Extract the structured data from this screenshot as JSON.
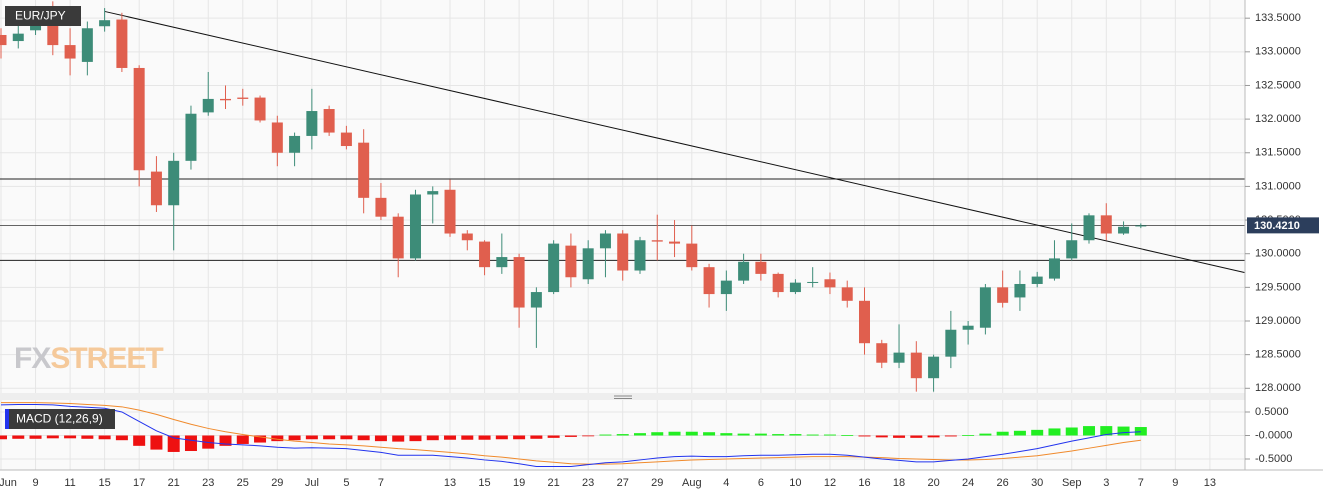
{
  "chart_data": {
    "type": "candlestick",
    "title": "EUR/JPY",
    "watermark": [
      "FX",
      "STREET"
    ],
    "categories": [
      "Jun",
      null,
      "9",
      null,
      "11",
      null,
      "15",
      null,
      "17",
      null,
      "21",
      null,
      "23",
      null,
      "25",
      null,
      "29",
      null,
      "Jul",
      null,
      "5",
      null,
      "7",
      null,
      null,
      null,
      "13",
      null,
      "15",
      null,
      "19",
      null,
      "21",
      null,
      "23",
      null,
      "27",
      null,
      "29",
      null,
      "Aug",
      null,
      "4",
      null,
      "6",
      null,
      "10",
      null,
      "12",
      null,
      "16",
      null,
      "18",
      null,
      "20",
      null,
      "24",
      null,
      "26",
      null,
      "30",
      null,
      "Sep",
      null,
      "3",
      null,
      "7",
      null,
      "9",
      null,
      "13",
      null,
      null
    ],
    "open": [
      133.25,
      133.16,
      133.32,
      133.5,
      133.1,
      132.85,
      133.38,
      133.48,
      132.76,
      131.22,
      130.72,
      131.38,
      132.1,
      132.3,
      132.32,
      132.32,
      131.95,
      131.5,
      131.75,
      132.15,
      131.8,
      131.65,
      130.83,
      130.55,
      129.93,
      130.88,
      130.95,
      130.3,
      130.18,
      129.8,
      129.95,
      129.2,
      129.43,
      130.12,
      129.62,
      130.08,
      130.3,
      129.75,
      130.2,
      130.18,
      130.15,
      129.8,
      129.4,
      129.6,
      129.88,
      129.7,
      129.43,
      129.58,
      129.62,
      129.5,
      129.3,
      128.67,
      128.38,
      128.53,
      128.15,
      128.47,
      128.87,
      128.9,
      129.5,
      129.35,
      129.55,
      129.63,
      129.93,
      130.2,
      130.57,
      130.3,
      130.42,
      null,
      null,
      null,
      null,
      null,
      null
    ],
    "high": [
      133.35,
      133.4,
      133.6,
      133.75,
      133.35,
      133.45,
      133.65,
      133.58,
      132.8,
      131.45,
      131.5,
      132.2,
      132.7,
      132.5,
      132.45,
      132.35,
      132.05,
      131.8,
      132.45,
      132.2,
      131.9,
      131.85,
      131.05,
      130.6,
      130.95,
      131.0,
      131.1,
      130.35,
      130.2,
      130.3,
      130.0,
      129.5,
      130.2,
      130.3,
      130.2,
      130.35,
      130.35,
      130.25,
      130.58,
      130.5,
      130.42,
      129.85,
      129.75,
      130.0,
      130.0,
      129.72,
      129.62,
      129.8,
      129.72,
      129.6,
      129.5,
      128.72,
      128.95,
      128.7,
      128.5,
      129.15,
      129.0,
      129.55,
      129.75,
      129.75,
      129.73,
      130.2,
      130.45,
      130.6,
      130.75,
      130.48,
      130.45,
      null,
      null,
      null,
      null,
      null,
      null
    ],
    "low": [
      132.9,
      133.05,
      133.25,
      132.95,
      132.65,
      132.65,
      133.3,
      132.7,
      131.0,
      130.62,
      130.05,
      131.25,
      132.05,
      132.15,
      132.2,
      131.95,
      131.3,
      131.3,
      131.55,
      131.75,
      131.55,
      130.6,
      130.5,
      129.65,
      129.9,
      130.45,
      130.25,
      130.05,
      129.68,
      129.7,
      128.9,
      128.6,
      129.4,
      129.5,
      129.55,
      129.65,
      129.6,
      129.7,
      129.9,
      129.95,
      129.75,
      129.2,
      129.15,
      129.55,
      129.6,
      129.35,
      129.4,
      129.5,
      129.4,
      129.2,
      128.5,
      128.3,
      128.3,
      127.95,
      127.95,
      128.3,
      128.65,
      128.8,
      129.2,
      129.15,
      129.5,
      129.6,
      129.9,
      130.15,
      130.2,
      130.28,
      130.38,
      null,
      null,
      null,
      null,
      null,
      null
    ],
    "close": [
      133.1,
      133.27,
      133.44,
      133.1,
      132.9,
      133.35,
      133.47,
      132.76,
      131.24,
      130.72,
      131.38,
      132.08,
      132.3,
      132.28,
      132.3,
      131.98,
      131.5,
      131.75,
      132.12,
      131.8,
      131.6,
      130.83,
      130.55,
      129.93,
      130.88,
      130.93,
      130.3,
      130.2,
      129.8,
      129.95,
      129.2,
      129.43,
      130.15,
      129.65,
      130.08,
      130.3,
      129.75,
      130.2,
      130.18,
      130.15,
      129.8,
      129.4,
      129.6,
      129.88,
      129.7,
      129.43,
      129.57,
      129.58,
      129.5,
      129.3,
      128.67,
      128.38,
      128.53,
      128.15,
      128.47,
      128.87,
      128.93,
      129.5,
      129.27,
      129.55,
      129.66,
      129.93,
      130.2,
      130.57,
      130.3,
      130.4,
      130.42,
      null,
      null,
      null,
      null,
      null,
      null
    ],
    "up_color": "#3d8c78",
    "down_color": "#e05f4e",
    "ylim": [
      127.93,
      133.77
    ],
    "yticks": [
      {
        "value": 128.0,
        "label": "128.0000"
      },
      {
        "value": 128.5,
        "label": "128.5000"
      },
      {
        "value": 129.0,
        "label": "129.0000"
      },
      {
        "value": 129.5,
        "label": "129.5000"
      },
      {
        "value": 130.0,
        "label": "130.0000"
      },
      {
        "value": 130.5,
        "label": "130.5000"
      },
      {
        "value": 131.0,
        "label": "131.0000"
      },
      {
        "value": 131.5,
        "label": "131.5000"
      },
      {
        "value": 132.0,
        "label": "132.0000"
      },
      {
        "value": 132.5,
        "label": "132.5000"
      },
      {
        "value": 133.0,
        "label": "133.0000"
      },
      {
        "value": 133.5,
        "label": "133.5000"
      }
    ],
    "grid": true,
    "levels": [
      131.11,
      129.9
    ],
    "current_price": {
      "value": 130.421,
      "label": "130.4210"
    },
    "trendline": {
      "x": [
        6,
        72
      ],
      "y": [
        133.6,
        129.72
      ]
    },
    "indicator": {
      "name": "MACD (12,26,9)",
      "histogram": [
        -0.08,
        -0.07,
        -0.07,
        -0.06,
        -0.06,
        -0.07,
        -0.08,
        -0.1,
        -0.22,
        -0.3,
        -0.35,
        -0.33,
        -0.28,
        -0.22,
        -0.18,
        -0.15,
        -0.12,
        -0.1,
        -0.08,
        -0.08,
        -0.08,
        -0.1,
        -0.12,
        -0.13,
        -0.12,
        -0.1,
        -0.09,
        -0.09,
        -0.09,
        -0.08,
        -0.08,
        -0.07,
        -0.05,
        -0.03,
        -0.01,
        0.02,
        0.03,
        0.05,
        0.07,
        0.08,
        0.08,
        0.07,
        0.05,
        0.04,
        0.04,
        0.03,
        0.03,
        0.02,
        0.02,
        0.01,
        -0.02,
        -0.04,
        -0.05,
        -0.05,
        -0.04,
        -0.02,
        0.01,
        0.04,
        0.08,
        0.1,
        0.12,
        0.15,
        0.17,
        0.2,
        0.2,
        0.19,
        0.18,
        null,
        null,
        null,
        null,
        null,
        null
      ],
      "macd": [
        0.65,
        0.66,
        0.66,
        0.65,
        0.62,
        0.6,
        0.58,
        0.5,
        0.3,
        0.1,
        -0.05,
        -0.1,
        -0.15,
        -0.18,
        -0.2,
        -0.22,
        -0.25,
        -0.27,
        -0.26,
        -0.27,
        -0.28,
        -0.32,
        -0.36,
        -0.42,
        -0.42,
        -0.42,
        -0.45,
        -0.48,
        -0.52,
        -0.55,
        -0.6,
        -0.66,
        -0.66,
        -0.66,
        -0.62,
        -0.58,
        -0.56,
        -0.52,
        -0.48,
        -0.45,
        -0.44,
        -0.45,
        -0.45,
        -0.43,
        -0.42,
        -0.42,
        -0.41,
        -0.4,
        -0.4,
        -0.42,
        -0.46,
        -0.5,
        -0.53,
        -0.56,
        -0.56,
        -0.53,
        -0.5,
        -0.45,
        -0.4,
        -0.34,
        -0.28,
        -0.2,
        -0.12,
        -0.05,
        0.02,
        0.06,
        0.08,
        null,
        null,
        null,
        null,
        null,
        null
      ],
      "signal": [
        0.7,
        0.7,
        0.7,
        0.69,
        0.68,
        0.66,
        0.64,
        0.61,
        0.54,
        0.45,
        0.34,
        0.24,
        0.15,
        0.08,
        0.02,
        -0.03,
        -0.08,
        -0.12,
        -0.15,
        -0.18,
        -0.2,
        -0.22,
        -0.25,
        -0.28,
        -0.3,
        -0.33,
        -0.36,
        -0.39,
        -0.43,
        -0.46,
        -0.5,
        -0.54,
        -0.57,
        -0.6,
        -0.61,
        -0.61,
        -0.6,
        -0.58,
        -0.56,
        -0.54,
        -0.52,
        -0.51,
        -0.5,
        -0.49,
        -0.48,
        -0.47,
        -0.46,
        -0.45,
        -0.45,
        -0.45,
        -0.46,
        -0.47,
        -0.49,
        -0.5,
        -0.51,
        -0.52,
        -0.52,
        -0.51,
        -0.49,
        -0.46,
        -0.43,
        -0.38,
        -0.33,
        -0.27,
        -0.21,
        -0.15,
        -0.1,
        null,
        null,
        null,
        null,
        null,
        null
      ],
      "up_color": "#22ee22",
      "down_color": "#ee1111",
      "macd_color": "#2233ee",
      "signal_color": "#f08a2c",
      "ylim": [
        -0.734,
        0.755
      ],
      "yticks": [
        {
          "value": 0.5,
          "label": "0.5000"
        },
        {
          "value": 0,
          "label": "-0.0000"
        },
        {
          "value": -0.5,
          "label": "-0.5000"
        }
      ]
    }
  }
}
